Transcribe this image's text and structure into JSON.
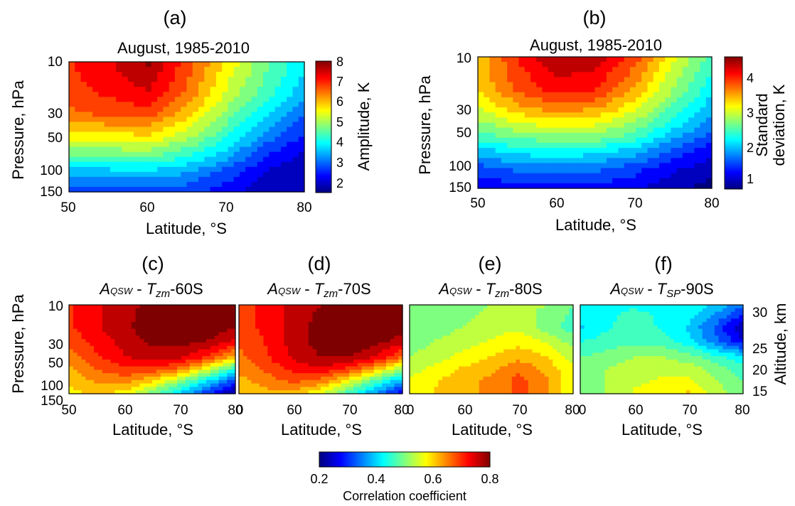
{
  "figure": {
    "panel_letters": [
      "(a)",
      "(b)",
      "(c)",
      "(d)",
      "(e)",
      "(f)"
    ],
    "colorbar_bottom": {
      "ticks": [
        "0.2",
        "0.4",
        "0.6",
        "0.8"
      ],
      "label": "Correlation coefficient",
      "range": [
        0.2,
        0.8
      ]
    },
    "colormap": [
      "#00007f",
      "#0000ff",
      "#007fff",
      "#00ffff",
      "#7fff7f",
      "#ffff00",
      "#ff7f00",
      "#ff0000",
      "#7f0000"
    ]
  },
  "chart_data": [
    {
      "type": "heatmap",
      "panel": "(a)",
      "title": "August, 1985-2010",
      "xlabel": "Latitude, °S",
      "ylabel": "Pressure, hPa",
      "colorbar_label": "Amplitude, K",
      "colorbar_ticks": [
        "2",
        "3",
        "4",
        "5",
        "6",
        "7",
        "8"
      ],
      "xticks": [
        "50",
        "60",
        "70",
        "80"
      ],
      "yticks": [
        "10",
        "30",
        "50",
        "100",
        "150"
      ],
      "xlim": [
        50,
        80
      ],
      "y_scale": "log",
      "ylim": [
        150,
        10
      ],
      "value_range": [
        1.3,
        8
      ],
      "x": [
        50,
        55,
        60,
        65,
        70,
        75,
        80
      ],
      "y": [
        10,
        20,
        30,
        50,
        70,
        100,
        150
      ],
      "z": [
        [
          6.9,
          7.3,
          7.9,
          6.8,
          5.6,
          4.6,
          3.7
        ],
        [
          6.8,
          7.0,
          7.3,
          6.4,
          5.2,
          4.2,
          3.3
        ],
        [
          6.4,
          6.6,
          6.7,
          5.9,
          4.7,
          3.7,
          2.8
        ],
        [
          5.4,
          5.4,
          5.5,
          4.9,
          4.0,
          2.9,
          2.2
        ],
        [
          4.4,
          4.5,
          4.6,
          4.1,
          3.4,
          2.4,
          1.8
        ],
        [
          3.3,
          3.4,
          3.5,
          3.2,
          2.6,
          1.9,
          1.6
        ],
        [
          2.5,
          2.6,
          2.6,
          2.5,
          2.1,
          1.7,
          1.5
        ]
      ]
    },
    {
      "type": "heatmap",
      "panel": "(b)",
      "title": "August, 1985-2010",
      "xlabel": "Latitude, °S",
      "ylabel": "Pressure, hPa",
      "colorbar_label": [
        "Standard",
        "deviation, K"
      ],
      "colorbar_ticks": [
        "1",
        "2",
        "3",
        "4"
      ],
      "xticks": [
        "50",
        "60",
        "70",
        "80"
      ],
      "yticks": [
        "10",
        "30",
        "50",
        "100",
        "150"
      ],
      "xlim": [
        50,
        80
      ],
      "y_scale": "log",
      "ylim": [
        150,
        10
      ],
      "value_range": [
        0.6,
        4.4
      ],
      "x": [
        50,
        55,
        60,
        65,
        70,
        75,
        80
      ],
      "y": [
        10,
        20,
        30,
        50,
        70,
        100,
        150
      ],
      "z": [
        [
          3.2,
          3.8,
          4.3,
          4.2,
          3.7,
          2.9,
          2.3
        ],
        [
          3.1,
          3.6,
          3.9,
          3.8,
          3.3,
          2.6,
          2.0
        ],
        [
          2.8,
          3.2,
          3.4,
          3.3,
          2.9,
          2.3,
          1.7
        ],
        [
          2.3,
          2.5,
          2.6,
          2.6,
          2.3,
          1.8,
          1.4
        ],
        [
          1.8,
          2.0,
          2.1,
          2.0,
          1.8,
          1.4,
          1.0
        ],
        [
          1.3,
          1.5,
          1.5,
          1.5,
          1.3,
          1.0,
          0.8
        ],
        [
          1.0,
          1.1,
          1.1,
          1.1,
          1.0,
          0.8,
          0.6
        ]
      ]
    },
    {
      "type": "heatmap",
      "panel": "(c)",
      "title_parts": [
        "A",
        "QSW",
        " - ",
        "T",
        "zm",
        "-60S"
      ],
      "xlabel": "Latitude, °S",
      "ylabel": "Pressure, hPa",
      "xticks": [
        "50",
        "60",
        "70",
        "80"
      ],
      "yticks": [
        "10",
        "30",
        "50",
        "100",
        "150"
      ],
      "xlim": [
        50,
        80
      ],
      "y_scale": "log",
      "ylim": [
        150,
        10
      ],
      "value_range": [
        0.2,
        0.8
      ],
      "x": [
        50,
        55,
        60,
        65,
        70,
        75,
        80
      ],
      "y": [
        10,
        20,
        30,
        50,
        70,
        100,
        150
      ],
      "z": [
        [
          0.7,
          0.74,
          0.76,
          0.8,
          0.8,
          0.82,
          0.8
        ],
        [
          0.7,
          0.74,
          0.77,
          0.81,
          0.82,
          0.81,
          0.78
        ],
        [
          0.68,
          0.72,
          0.76,
          0.79,
          0.8,
          0.78,
          0.74
        ],
        [
          0.65,
          0.7,
          0.74,
          0.76,
          0.75,
          0.7,
          0.6
        ],
        [
          0.62,
          0.67,
          0.7,
          0.7,
          0.66,
          0.56,
          0.45
        ],
        [
          0.6,
          0.64,
          0.65,
          0.6,
          0.52,
          0.42,
          0.32
        ],
        [
          0.58,
          0.6,
          0.58,
          0.5,
          0.4,
          0.3,
          0.2
        ]
      ]
    },
    {
      "type": "heatmap",
      "panel": "(d)",
      "title_parts": [
        "A",
        "QSW",
        " - ",
        "T",
        "zm",
        "-70S"
      ],
      "xlabel": "Latitude, °S",
      "xticks": [
        "0",
        "60",
        "70",
        "80"
      ],
      "xlim": [
        50,
        80
      ],
      "y_scale": "log",
      "ylim": [
        150,
        10
      ],
      "value_range": [
        0.2,
        0.8
      ],
      "x": [
        50,
        55,
        60,
        65,
        70,
        75,
        80
      ],
      "y": [
        10,
        20,
        30,
        50,
        70,
        100,
        150
      ],
      "z": [
        [
          0.68,
          0.72,
          0.76,
          0.78,
          0.8,
          0.84,
          0.82
        ],
        [
          0.68,
          0.72,
          0.76,
          0.8,
          0.82,
          0.83,
          0.8
        ],
        [
          0.67,
          0.71,
          0.76,
          0.8,
          0.82,
          0.8,
          0.76
        ],
        [
          0.66,
          0.7,
          0.75,
          0.78,
          0.78,
          0.74,
          0.66
        ],
        [
          0.64,
          0.68,
          0.72,
          0.74,
          0.7,
          0.62,
          0.52
        ],
        [
          0.62,
          0.65,
          0.68,
          0.66,
          0.58,
          0.48,
          0.38
        ],
        [
          0.6,
          0.62,
          0.62,
          0.56,
          0.46,
          0.36,
          0.26
        ]
      ]
    },
    {
      "type": "heatmap",
      "panel": "(e)",
      "title_parts": [
        "A",
        "QSW",
        " - ",
        "T",
        "zm",
        "-80S"
      ],
      "xlabel": "Latitude, °S",
      "xticks": [
        "0",
        "60",
        "70",
        "80"
      ],
      "xlim": [
        50,
        80
      ],
      "y_scale": "log",
      "ylim": [
        150,
        10
      ],
      "value_range": [
        0.2,
        0.8
      ],
      "x": [
        50,
        55,
        60,
        65,
        70,
        75,
        80
      ],
      "y": [
        10,
        20,
        30,
        50,
        70,
        100,
        150
      ],
      "z": [
        [
          0.48,
          0.5,
          0.5,
          0.52,
          0.52,
          0.52,
          0.48
        ],
        [
          0.48,
          0.5,
          0.52,
          0.54,
          0.55,
          0.5,
          0.46
        ],
        [
          0.5,
          0.52,
          0.54,
          0.56,
          0.58,
          0.55,
          0.5
        ],
        [
          0.52,
          0.54,
          0.57,
          0.6,
          0.62,
          0.6,
          0.54
        ],
        [
          0.54,
          0.57,
          0.6,
          0.62,
          0.66,
          0.62,
          0.56
        ],
        [
          0.56,
          0.59,
          0.62,
          0.64,
          0.68,
          0.64,
          0.56
        ],
        [
          0.56,
          0.6,
          0.62,
          0.64,
          0.68,
          0.64,
          0.56
        ]
      ]
    },
    {
      "type": "heatmap",
      "panel": "(f)",
      "title_parts": [
        "A",
        "QSW",
        " - ",
        "T",
        "SP",
        "-90S"
      ],
      "xlabel": "Latitude, °S",
      "ylabel_right": "Altitude, km",
      "xticks": [
        "0",
        "60",
        "70",
        "80"
      ],
      "right_ticks": [
        "15",
        "20",
        "25",
        "30"
      ],
      "xlim": [
        50,
        80
      ],
      "y_scale": "log",
      "ylim": [
        150,
        10
      ],
      "value_range": [
        0.2,
        0.8
      ],
      "x": [
        50,
        55,
        60,
        65,
        70,
        75,
        80
      ],
      "y": [
        10,
        20,
        30,
        50,
        70,
        100,
        150
      ],
      "z": [
        [
          0.44,
          0.44,
          0.44,
          0.44,
          0.44,
          0.4,
          0.34
        ],
        [
          0.4,
          0.44,
          0.46,
          0.44,
          0.4,
          0.32,
          0.22
        ],
        [
          0.44,
          0.46,
          0.47,
          0.46,
          0.42,
          0.34,
          0.26
        ],
        [
          0.48,
          0.5,
          0.52,
          0.52,
          0.5,
          0.46,
          0.42
        ],
        [
          0.5,
          0.52,
          0.54,
          0.55,
          0.54,
          0.5,
          0.46
        ],
        [
          0.5,
          0.52,
          0.55,
          0.56,
          0.56,
          0.52,
          0.48
        ],
        [
          0.5,
          0.52,
          0.56,
          0.58,
          0.6,
          0.54,
          0.48
        ]
      ]
    }
  ]
}
